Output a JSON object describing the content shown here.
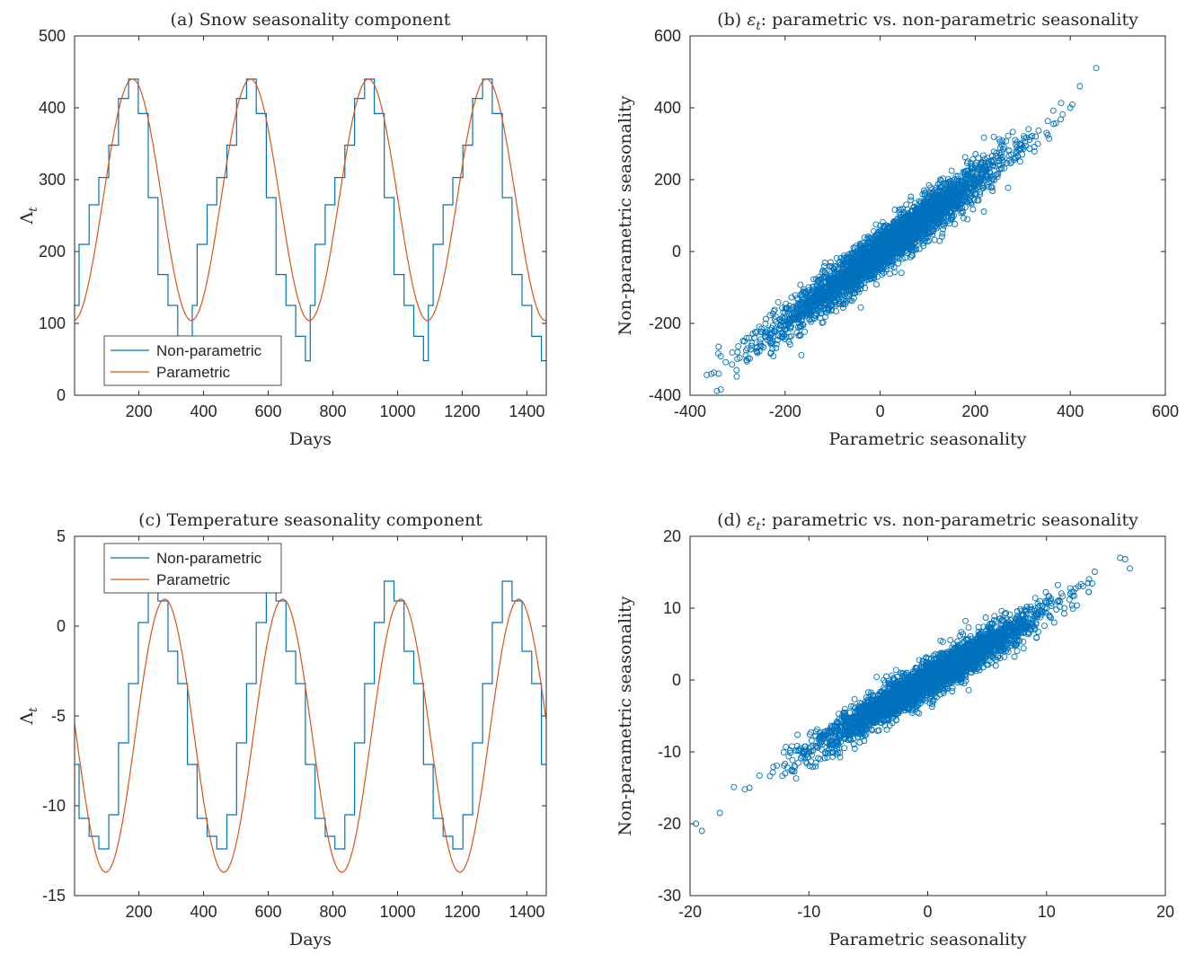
{
  "colors": {
    "nonparametric": "#0072BD",
    "parametric": "#D95319",
    "axes": "#262626"
  },
  "chart_data": [
    {
      "panel": "a",
      "type": "line",
      "title_main": "(a) Snow seasonality component",
      "xlabel": "Days",
      "ylabel": "Λ",
      "ylabel_sub": "t",
      "xlim": [
        1,
        1460
      ],
      "ylim": [
        0,
        500
      ],
      "xticks": [
        200,
        400,
        600,
        800,
        1000,
        1200,
        1400
      ],
      "yticks": [
        0,
        100,
        200,
        300,
        400,
        500
      ],
      "legend": {
        "position": "bottom-left",
        "entries": [
          "Non-parametric",
          "Parametric"
        ]
      },
      "period_days": 365,
      "series": [
        {
          "name": "Non-parametric",
          "style": "step",
          "one_period_x_edges": [
            0,
            15,
            46,
            76,
            107,
            137,
            168,
            198,
            229,
            259,
            290,
            320,
            350,
            365
          ],
          "one_period_levels": [
            125,
            210,
            265,
            303,
            348,
            413,
            440,
            392,
            275,
            168,
            125,
            82,
            48
          ]
        },
        {
          "name": "Parametric",
          "style": "sinusoid",
          "mean": 272,
          "amplitude": 168,
          "peak_day": 180,
          "period_days": 365
        }
      ]
    },
    {
      "panel": "b",
      "type": "scatter",
      "title_eps": "ε",
      "title_eps_sub": "t",
      "title_rest": ": parametric vs. non-parametric seasonality",
      "xlabel": "Parametric seasonality",
      "ylabel": "Non-parametric seasonality",
      "xlim": [
        -400,
        600
      ],
      "ylim": [
        -400,
        600
      ],
      "xticks": [
        -400,
        -200,
        0,
        200,
        400,
        600
      ],
      "yticks": [
        -400,
        -200,
        0,
        200,
        400,
        600
      ],
      "approx_points": [
        [
          -340,
          -265
        ],
        [
          -325,
          -308
        ],
        [
          -300,
          -280
        ],
        [
          -270,
          -255
        ],
        [
          -250,
          -215
        ],
        [
          -200,
          -170
        ],
        [
          -150,
          -130
        ],
        [
          -100,
          -80
        ],
        [
          -50,
          -40
        ],
        [
          0,
          0
        ],
        [
          50,
          45
        ],
        [
          100,
          90
        ],
        [
          150,
          140
        ],
        [
          200,
          190
        ],
        [
          250,
          240
        ],
        [
          300,
          290
        ],
        [
          350,
          330
        ],
        [
          400,
          400
        ],
        [
          420,
          460
        ]
      ]
    },
    {
      "panel": "c",
      "type": "line",
      "title_main": "(c) Temperature seasonality component",
      "xlabel": "Days",
      "ylabel": "Λ",
      "ylabel_sub": "t",
      "xlim": [
        1,
        1460
      ],
      "ylim": [
        -15,
        5
      ],
      "xticks": [
        200,
        400,
        600,
        800,
        1000,
        1200,
        1400
      ],
      "yticks": [
        -15,
        -10,
        -5,
        0,
        5
      ],
      "legend": {
        "position": "top-left",
        "entries": [
          "Non-parametric",
          "Parametric"
        ]
      },
      "period_days": 365,
      "series": [
        {
          "name": "Non-parametric",
          "style": "step",
          "one_period_x_edges": [
            0,
            15,
            46,
            76,
            107,
            137,
            168,
            198,
            229,
            259,
            290,
            320,
            350,
            365
          ],
          "one_period_levels": [
            -7.7,
            -10.7,
            -11.7,
            -12.4,
            -10.5,
            -6.5,
            -3.2,
            0.2,
            2.5,
            1.4,
            -1.4,
            -3.2,
            -7.7
          ]
        },
        {
          "name": "Parametric",
          "style": "sinusoid",
          "mean": -6.1,
          "amplitude": 7.6,
          "peak_day": 280,
          "period_days": 365
        }
      ]
    },
    {
      "panel": "d",
      "type": "scatter",
      "title_main": "(d)",
      "title_eps": "ε",
      "title_eps_sub": "t",
      "title_rest": ": parametric vs. non-parametric seasonality",
      "xlabel": "Parametric seasonality",
      "ylabel": "Non-parametric seasonality",
      "xlim": [
        -20,
        20
      ],
      "ylim": [
        -30,
        20
      ],
      "xticks": [
        -20,
        -10,
        0,
        10,
        20
      ],
      "yticks": [
        -30,
        -20,
        -10,
        0,
        10,
        20
      ],
      "approx_points": [
        [
          -19.5,
          -20
        ],
        [
          -19,
          -21
        ],
        [
          -17.5,
          -18.5
        ],
        [
          -15,
          -15
        ],
        [
          -12,
          -13
        ],
        [
          -10,
          -10
        ],
        [
          -5,
          -5
        ],
        [
          0,
          0
        ],
        [
          5,
          5.5
        ],
        [
          10,
          10
        ],
        [
          12,
          12
        ],
        [
          13.5,
          13.5
        ],
        [
          16.2,
          17
        ]
      ]
    }
  ]
}
